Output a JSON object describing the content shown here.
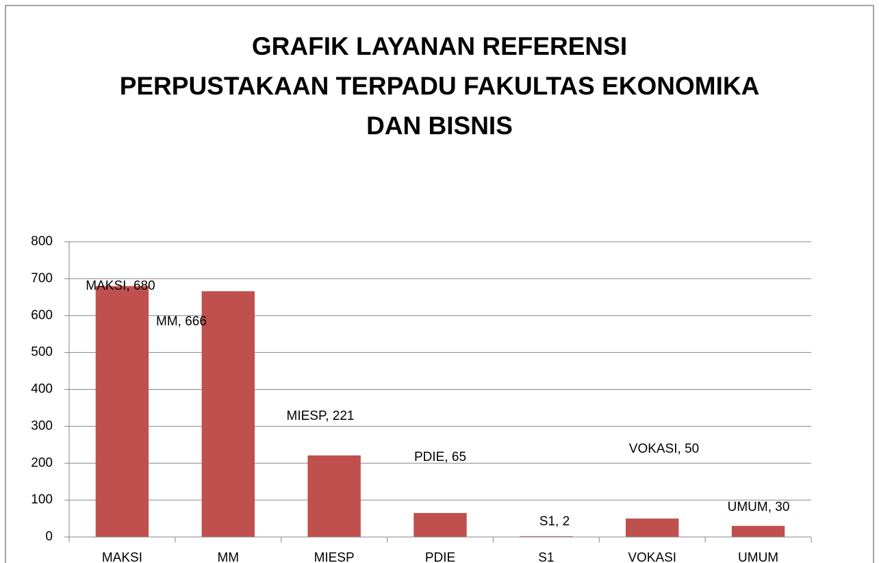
{
  "chart_data": {
    "type": "bar",
    "title": [
      "GRAFIK LAYANAN REFERENSI",
      "PERPUSTAKAAN TERPADU FAKULTAS EKONOMIKA",
      "DAN BISNIS"
    ],
    "categories": [
      "MAKSI",
      "MM",
      "MIESP",
      "PDIE",
      "S1",
      "VOKASI",
      "UMUM"
    ],
    "values": [
      680,
      666,
      221,
      65,
      2,
      50,
      30
    ],
    "value_labels": [
      "MAKSI, 680",
      "MM, 666",
      "MIESP, 221",
      "PDIE, 65",
      "S1, 2",
      "VOKASI, 50",
      "UMUM, 30"
    ],
    "color": "#c0504d",
    "ylim": [
      0,
      800
    ],
    "yticks": [
      0,
      100,
      200,
      300,
      400,
      500,
      600,
      700,
      800
    ],
    "grid": true
  }
}
